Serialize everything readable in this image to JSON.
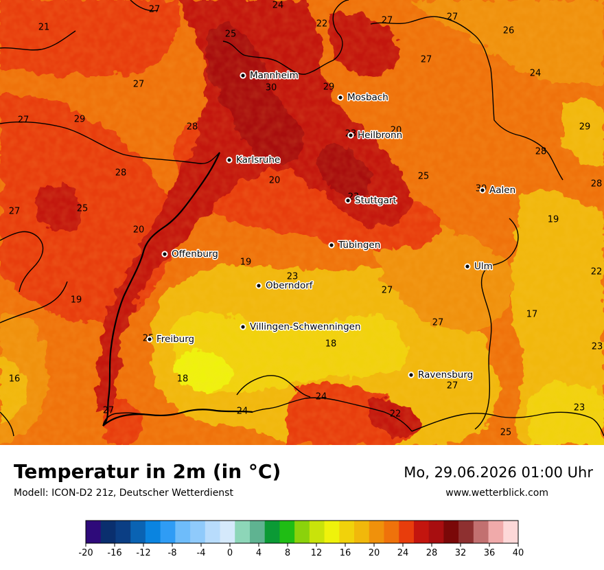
{
  "header": {
    "title": "Temperatur in 2m (in °C)",
    "model_info": "Modell: ICON-D2 21z, Deutscher Wetterdienst",
    "datetime": "Mo, 29.06.2026 01:00 Uhr",
    "website": "www.wetterblick.com"
  },
  "legend": {
    "colors": [
      "#2e0a7a",
      "#0a2f6e",
      "#0b3e84",
      "#0a63b3",
      "#0a84e0",
      "#2f9cf5",
      "#6ebcfa",
      "#8fcafb",
      "#b8dcfc",
      "#d5e9fb",
      "#8dd6b8",
      "#5fb391",
      "#0b9a35",
      "#1fbd14",
      "#8bd20b",
      "#c9e30a",
      "#eff20b",
      "#f1d20b",
      "#f1b80b",
      "#f0910b",
      "#ef720b",
      "#e83d0c",
      "#c3150e",
      "#a80e10",
      "#7a0808",
      "#8e3030",
      "#c27070",
      "#f0aaaa",
      "#fdd8d8"
    ],
    "ticks": [
      "-20",
      "-16",
      "-12",
      "-8",
      "-4",
      "0",
      "4",
      "8",
      "12",
      "16",
      "20",
      "24",
      "28",
      "32",
      "36",
      "40"
    ]
  },
  "map": {
    "cities": [
      {
        "name": "Mannheim"
      },
      {
        "name": "Mosbach"
      },
      {
        "name": "Heilbronn"
      },
      {
        "name": "Karlsruhe"
      },
      {
        "name": "Aalen"
      },
      {
        "name": "Stuttgart"
      },
      {
        "name": "Tübingen"
      },
      {
        "name": "Offenburg"
      },
      {
        "name": "Ulm"
      },
      {
        "name": "Oberndorf"
      },
      {
        "name": "Villingen-Schwenningen"
      },
      {
        "name": "Freiburg"
      },
      {
        "name": "Ravensburg"
      }
    ],
    "temperature_labels": [
      "27",
      "24",
      "22",
      "27",
      "27",
      "21",
      "26",
      "25",
      "24",
      "27",
      "30",
      "29",
      "27",
      "27",
      "29",
      "28",
      "20",
      "29",
      "23",
      "28",
      "28",
      "20",
      "25",
      "28",
      "30",
      "25",
      "23",
      "27",
      "19",
      "20",
      "19",
      "23",
      "27",
      "22",
      "19",
      "27",
      "17",
      "18",
      "23",
      "16",
      "18",
      "27",
      "25",
      "24",
      "27",
      "24",
      "22",
      "23",
      "25"
    ]
  }
}
